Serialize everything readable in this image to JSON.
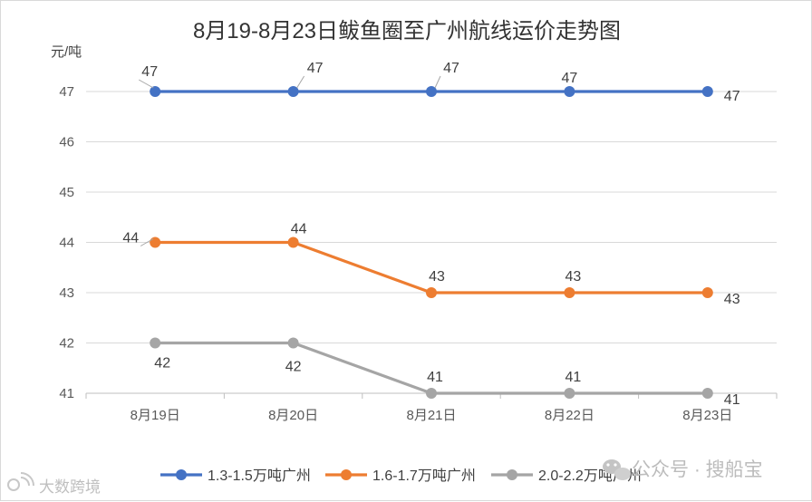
{
  "chart_data": {
    "type": "line",
    "title": "8月19-8月23日鲅鱼圈至广州航线运价走势图",
    "ylabel": "元/吨",
    "xlabel": "",
    "categories": [
      "8月19日",
      "8月20日",
      "8月21日",
      "8月22日",
      "8月23日"
    ],
    "ylim": [
      41,
      47
    ],
    "yticks": [
      "41",
      "42",
      "43",
      "44",
      "45",
      "46",
      "47"
    ],
    "grid": true,
    "legend_position": "bottom",
    "series": [
      {
        "name": "1.3-1.5万吨广州",
        "values": [
          47,
          47,
          47,
          47,
          47
        ],
        "color": "#4472c4",
        "labels": [
          "47",
          "47",
          "47",
          "47",
          "47"
        ]
      },
      {
        "name": "1.6-1.7万吨广州",
        "values": [
          44,
          44,
          43,
          43,
          43
        ],
        "color": "#ed7d31",
        "labels": [
          "44",
          "44",
          "43",
          "43",
          "43"
        ]
      },
      {
        "name": "2.0-2.2万吨广州",
        "values": [
          42,
          42,
          41,
          41,
          41
        ],
        "color": "#a5a5a5",
        "labels": [
          "42",
          "42",
          "41",
          "41",
          "41"
        ]
      }
    ]
  },
  "watermark_left": "大数跨境",
  "watermark_right": "公众号 · 搜船宝"
}
